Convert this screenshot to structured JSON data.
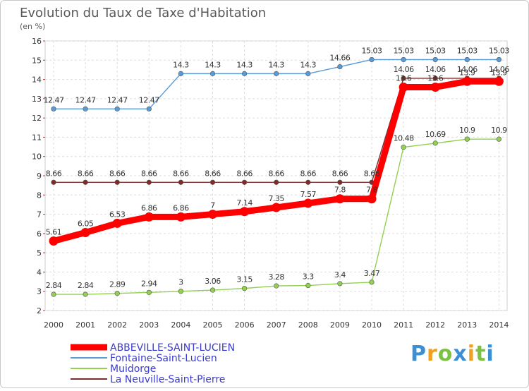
{
  "chart_data": {
    "type": "line",
    "title": "Evolution du Taux de Taxe d'Habitation",
    "subtitle": "(en %)",
    "x": [
      "2000",
      "2001",
      "2002",
      "2003",
      "2004",
      "2005",
      "2006",
      "2007",
      "2008",
      "2009",
      "2010",
      "2011",
      "2012",
      "2013",
      "2014"
    ],
    "ylim": [
      2,
      16
    ],
    "yticks": [
      "2",
      "3",
      "4",
      "5",
      "6",
      "7",
      "8",
      "9",
      "10",
      "11",
      "12",
      "13",
      "14",
      "15",
      "16"
    ],
    "grid": true,
    "series": [
      {
        "name": "ABBEVILLE-SAINT-LUCIEN",
        "color": "#ff0000",
        "values": [
          5.61,
          6.05,
          6.53,
          6.86,
          6.86,
          7,
          7.14,
          7.35,
          7.57,
          7.8,
          7.8,
          13.6,
          13.6,
          13.9,
          13.9
        ],
        "labels": [
          "5.61",
          "6.05",
          "6.53",
          "6.86",
          "6.86",
          "7",
          "7.14",
          "7.35",
          "7.57",
          "7.8",
          "7.8",
          "13.6",
          "13.6",
          "13.9",
          "13.9"
        ]
      },
      {
        "name": "Fontaine-Saint-Lucien",
        "color": "#5b9bd5",
        "values": [
          12.47,
          12.47,
          12.47,
          12.47,
          14.3,
          14.3,
          14.3,
          14.3,
          14.3,
          14.66,
          15.03,
          15.03,
          15.03,
          15.03,
          15.03
        ],
        "labels": [
          "12.47",
          "12.47",
          "12.47",
          "12.47",
          "14.3",
          "14.3",
          "14.3",
          "14.3",
          "14.3",
          "14.66",
          "15.03",
          "15.03",
          "15.03",
          "15.03",
          "15.03"
        ]
      },
      {
        "name": "Muidorge",
        "color": "#92d050",
        "values": [
          2.84,
          2.84,
          2.89,
          2.94,
          3,
          3.06,
          3.15,
          3.28,
          3.3,
          3.4,
          3.47,
          10.48,
          10.69,
          10.9,
          10.9
        ],
        "labels": [
          "2.84",
          "2.84",
          "2.89",
          "2.94",
          "3",
          "3.06",
          "3.15",
          "3.28",
          "3.3",
          "3.4",
          "3.47",
          "10.48",
          "10.69",
          "10.9",
          "10.9"
        ]
      },
      {
        "name": "La Neuville-Saint-Pierre",
        "color": "#7b2c2c",
        "values": [
          8.66,
          8.66,
          8.66,
          8.66,
          8.66,
          8.66,
          8.66,
          8.66,
          8.66,
          8.66,
          8.66,
          14.06,
          14.06,
          14.06,
          14.06
        ],
        "labels": [
          "8.66",
          "8.66",
          "8.66",
          "8.66",
          "8.66",
          "8.66",
          "8.66",
          "8.66",
          "8.66",
          "8.66",
          "8.66",
          "14.06",
          "14.06",
          "14.06",
          "14.06"
        ]
      }
    ]
  },
  "brand": {
    "letters": [
      "P",
      "r",
      "o",
      "x",
      "i",
      "t",
      "i"
    ],
    "colors": [
      "#3b8fd6",
      "#f0a020",
      "#7cc242",
      "#3b8fd6",
      "#f0a020",
      "#7cc242",
      "#3b8fd6"
    ]
  }
}
